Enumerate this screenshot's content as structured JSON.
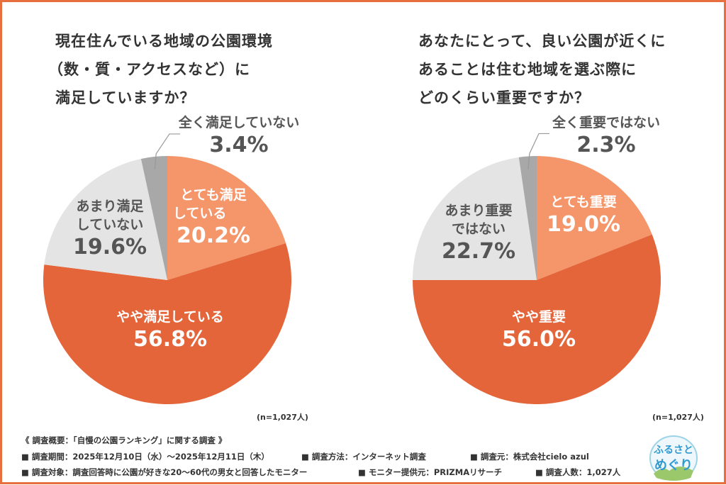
{
  "chart_data": [
    {
      "type": "pie",
      "title": "現在住んでいる地域の公園環境（数・質・アクセスなど）に満足していますか？",
      "title_lines": [
        "現在住んでいる地域の公園環境",
        "（数・質・アクセスなど）に",
        "満足していますか？"
      ],
      "slices": [
        {
          "label": "とても満足している",
          "label_lines": [
            "とても満足",
            "している"
          ],
          "value": 20.2,
          "display": "20.2%",
          "color": "#f4956a"
        },
        {
          "label": "やや満足している",
          "label_lines": [
            "やや満足している"
          ],
          "value": 56.8,
          "display": "56.8%",
          "color": "#e5653a"
        },
        {
          "label": "あまり満足していない",
          "label_lines": [
            "あまり満足",
            "していない"
          ],
          "value": 19.6,
          "display": "19.6%",
          "color": "#e4e4e4"
        },
        {
          "label": "全く満足していない",
          "label_lines": [
            "全く満足していない"
          ],
          "value": 3.4,
          "display": "3.4%",
          "color": "#a8a8a8"
        }
      ],
      "note": "(n=1,027人)"
    },
    {
      "type": "pie",
      "title": "あなたにとって、良い公園が近くにあることは住む地域を選ぶ際にどのくらい重要ですか？",
      "title_lines": [
        "あなたにとって、良い公園が近くに",
        "あることは住む地域を選ぶ際に",
        "どのくらい重要ですか？"
      ],
      "slices": [
        {
          "label": "とても重要",
          "label_lines": [
            "とても重要"
          ],
          "value": 19.0,
          "display": "19.0%",
          "color": "#f4956a"
        },
        {
          "label": "やや重要",
          "label_lines": [
            "やや重要"
          ],
          "value": 56.0,
          "display": "56.0%",
          "color": "#e5653a"
        },
        {
          "label": "あまり重要ではない",
          "label_lines": [
            "あまり重要",
            "ではない"
          ],
          "value": 22.7,
          "display": "22.7%",
          "color": "#e4e4e4"
        },
        {
          "label": "全く重要ではない",
          "label_lines": [
            "全く重要ではない"
          ],
          "value": 2.3,
          "display": "2.3%",
          "color": "#a8a8a8"
        }
      ],
      "note": "(n=1,027人)"
    }
  ],
  "footer": {
    "heading": "《 調査概要：「自慢の公園ランキング」に関する調査 》",
    "row1": [
      "■ 調査期間：2025年12月10日（水）～2025年12月11日（木）",
      "■ 調査方法：インターネット調査",
      "■ 調査元：株式会社cielo azul"
    ],
    "row2": [
      "■ 調査対象：調査回答時に公園が好きな20～60代の男女と回答したモニター",
      "■ モニター提供元：PRIZMAリサーチ",
      "■ 調査人数：1,027人"
    ]
  },
  "logo": {
    "text_lines": [
      "ふるさと",
      "めぐり"
    ]
  },
  "colors": {
    "border": "#e8703f"
  }
}
